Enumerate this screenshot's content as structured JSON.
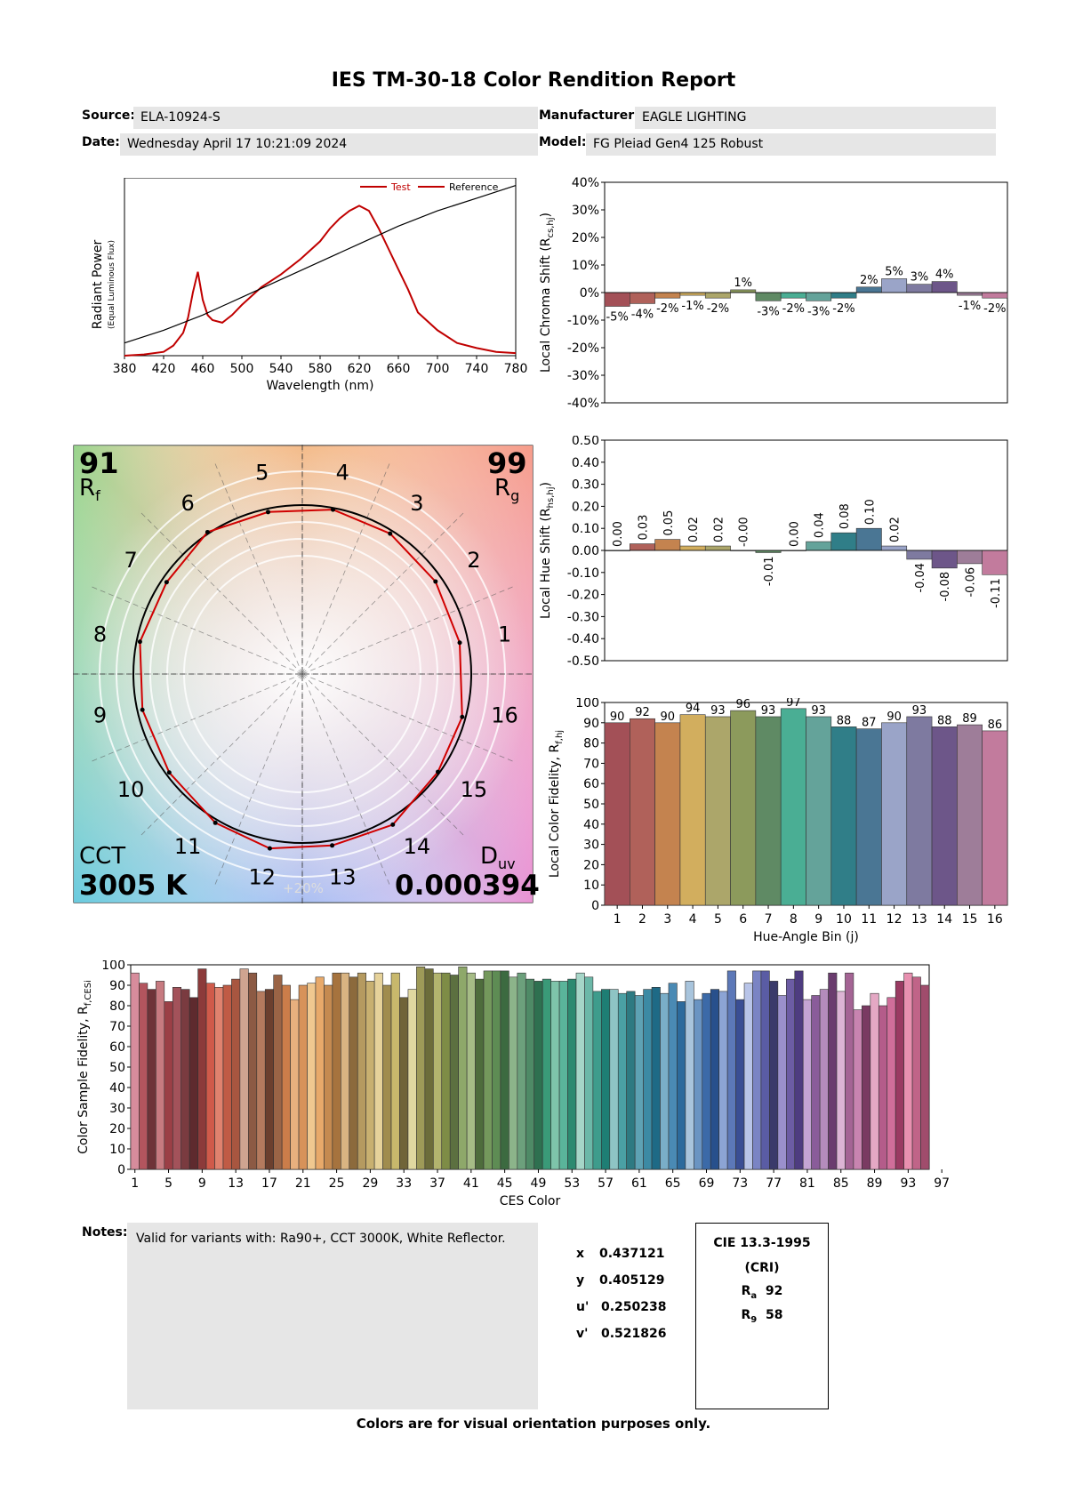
{
  "report": {
    "title": "IES TM-30-18 Color Rendition Report",
    "source_label": "Source:",
    "source": "ELA-10924-S",
    "manufacturer_label": "Manufacturer:",
    "manufacturer": "EAGLE LIGHTING",
    "date_label": "Date:",
    "date": "Wednesday April 17 10:21:09 2024",
    "model_label": "Model:",
    "model": "FG Pleiad Gen4 125 Robust",
    "notes_label": "Notes:",
    "notes": "Valid for variants with: Ra90+, CCT 3000K, White Reflector.",
    "footer": "Colors are for visual orientation purposes only."
  },
  "coordinates": {
    "x_label": "x",
    "x": "0.437121",
    "y_label": "y",
    "y": "0.405129",
    "u_label": "u'",
    "u": "0.250238",
    "v_label": "v'",
    "v": "0.521826"
  },
  "cri": {
    "title": "CIE 13.3-1995",
    "subtitle": "(CRI)",
    "ra_label": "R",
    "ra_sub": "a",
    "ra": "92",
    "r9_label": "R",
    "r9_sub": "9",
    "r9": "58"
  },
  "vector_graphic": {
    "rf": "91",
    "rf_label": "R",
    "rf_sub": "f",
    "rg": "99",
    "rg_label": "R",
    "rg_sub": "g",
    "cct_label": "CCT",
    "cct": "3005 K",
    "duv_label": "D",
    "duv_sub": "uv",
    "duv": "0.000394",
    "ring_label": "+20%",
    "bin_labels": [
      "1",
      "2",
      "3",
      "4",
      "5",
      "6",
      "7",
      "8",
      "9",
      "10",
      "11",
      "12",
      "13",
      "14",
      "15",
      "16"
    ]
  },
  "bin_colors": [
    "#a35057",
    "#b0615a",
    "#c4834f",
    "#d2ae5e",
    "#aca66a",
    "#8c9a5c",
    "#5f8a64",
    "#4aae94",
    "#64a39a",
    "#307e88",
    "#4a7694",
    "#9aa4c8",
    "#7e7aa0",
    "#6d5689",
    "#9e7d99",
    "#c27b9d"
  ],
  "chart_data": [
    {
      "type": "line",
      "name": "spd",
      "xlabel": "Wavelength (nm)",
      "ylabel": "Radiant Power",
      "ylabel_sub": "(Equal Luminous Flux)",
      "xlim": [
        380,
        780
      ],
      "xticks": [
        380,
        420,
        460,
        500,
        540,
        580,
        620,
        660,
        700,
        740,
        780
      ],
      "legend": [
        "Test",
        "Reference"
      ],
      "legend_position": "top-right",
      "series": [
        {
          "name": "Test",
          "color": "#c00000",
          "x": [
            380,
            400,
            420,
            430,
            440,
            445,
            450,
            455,
            460,
            465,
            470,
            480,
            490,
            500,
            520,
            540,
            560,
            580,
            590,
            600,
            610,
            620,
            630,
            640,
            650,
            660,
            670,
            680,
            700,
            720,
            740,
            760,
            780
          ],
          "y": [
            0,
            0.005,
            0.015,
            0.04,
            0.09,
            0.15,
            0.25,
            0.33,
            0.22,
            0.16,
            0.14,
            0.13,
            0.16,
            0.2,
            0.27,
            0.32,
            0.38,
            0.45,
            0.5,
            0.54,
            0.57,
            0.59,
            0.57,
            0.5,
            0.42,
            0.34,
            0.26,
            0.17,
            0.1,
            0.05,
            0.03,
            0.015,
            0.01
          ]
        },
        {
          "name": "Reference",
          "color": "#000000",
          "x": [
            380,
            420,
            460,
            500,
            540,
            580,
            620,
            660,
            700,
            740,
            780
          ],
          "y": [
            0.05,
            0.1,
            0.16,
            0.23,
            0.3,
            0.37,
            0.44,
            0.51,
            0.57,
            0.62,
            0.67
          ]
        }
      ]
    },
    {
      "type": "bar",
      "name": "local_chroma_shift",
      "ylabel": "Local Chroma Shift (R",
      "ylabel_sub": "cs,hj",
      "ylabel_close": ")",
      "ylim": [
        -40,
        40
      ],
      "yticks": [
        "40%",
        "30%",
        "20%",
        "10%",
        "0%",
        "-10%",
        "-20%",
        "-30%",
        "-40%"
      ],
      "categories": [
        "1",
        "2",
        "3",
        "4",
        "5",
        "6",
        "7",
        "8",
        "9",
        "10",
        "11",
        "12",
        "13",
        "14",
        "15",
        "16"
      ],
      "values": [
        -5,
        -4,
        -2,
        -1,
        -2,
        1,
        -3,
        -2,
        -3,
        -2,
        2,
        5,
        3,
        4,
        -1,
        -2
      ],
      "labels": [
        "-5%",
        "-4%",
        "-2%",
        "-1%",
        "-2%",
        "1%",
        "-3%",
        "-2%",
        "-3%",
        "-2%",
        "2%",
        "5%",
        "3%",
        "4%",
        "-1%",
        "-2%"
      ]
    },
    {
      "type": "bar",
      "name": "local_hue_shift",
      "ylabel": "Local Hue Shift (R",
      "ylabel_sub": "hs,hj",
      "ylabel_close": ")",
      "ylim": [
        -0.5,
        0.5
      ],
      "yticks": [
        "0.50",
        "0.40",
        "0.30",
        "0.20",
        "0.10",
        "0.00",
        "-0.10",
        "-0.20",
        "-0.30",
        "-0.40",
        "-0.50"
      ],
      "categories": [
        "1",
        "2",
        "3",
        "4",
        "5",
        "6",
        "7",
        "8",
        "9",
        "10",
        "11",
        "12",
        "13",
        "14",
        "15",
        "16"
      ],
      "values": [
        0.0,
        0.03,
        0.05,
        0.02,
        0.02,
        0.0,
        -0.01,
        0.0,
        0.04,
        0.08,
        0.1,
        0.02,
        -0.04,
        -0.08,
        -0.06,
        -0.11
      ],
      "labels": [
        "0.00",
        "0.03",
        "0.05",
        "0.02",
        "0.02",
        "-0.00",
        "-0.01",
        "0.00",
        "0.04",
        "0.08",
        "0.10",
        "0.02",
        "-0.04",
        "-0.08",
        "-0.06",
        "-0.11"
      ]
    },
    {
      "type": "bar",
      "name": "local_color_fidelity",
      "xlabel": "Hue-Angle Bin (j)",
      "ylabel": "Local Color Fidelity, R",
      "ylabel_sub": "f,hj",
      "ylim": [
        0,
        100
      ],
      "yticks": [
        "100",
        "90",
        "80",
        "70",
        "60",
        "50",
        "40",
        "30",
        "20",
        "10",
        "0"
      ],
      "categories": [
        "1",
        "2",
        "3",
        "4",
        "5",
        "6",
        "7",
        "8",
        "9",
        "10",
        "11",
        "12",
        "13",
        "14",
        "15",
        "16"
      ],
      "values": [
        90,
        92,
        90,
        94,
        93,
        96,
        93,
        97,
        93,
        88,
        87,
        90,
        93,
        88,
        89,
        86
      ]
    },
    {
      "type": "bar",
      "name": "color_sample_fidelity",
      "xlabel": "CES Color",
      "ylabel": "Color Sample Fidelity, R",
      "ylabel_sub": "f,CESi",
      "ylim": [
        0,
        100
      ],
      "yticks": [
        "100",
        "90",
        "80",
        "70",
        "60",
        "50",
        "40",
        "30",
        "20",
        "10",
        "0"
      ],
      "xticks": [
        "1",
        "5",
        "9",
        "13",
        "17",
        "21",
        "25",
        "29",
        "33",
        "37",
        "41",
        "45",
        "49",
        "53",
        "57",
        "61",
        "65",
        "69",
        "73",
        "77",
        "81",
        "85",
        "89",
        "93",
        "97"
      ],
      "values": [
        96,
        91,
        88,
        92,
        82,
        89,
        88,
        84,
        98,
        91,
        89,
        90,
        93,
        98,
        96,
        87,
        88,
        95,
        90,
        83,
        90,
        91,
        94,
        90,
        96,
        96,
        94,
        96,
        92,
        96,
        90,
        96,
        84,
        88,
        99,
        98,
        96,
        96,
        95,
        99,
        96,
        93,
        97,
        97,
        97,
        94,
        96,
        93,
        92,
        93,
        92,
        92,
        93,
        96,
        94,
        87,
        88,
        88,
        86,
        87,
        85,
        88,
        89,
        86,
        91,
        82,
        92,
        83,
        86,
        88,
        87,
        97,
        83,
        91,
        97,
        97,
        92,
        85,
        93,
        97,
        83,
        85,
        88,
        96,
        87,
        96,
        78,
        80,
        86,
        80,
        84,
        92,
        96,
        94,
        90
      ],
      "colors": [
        "#d78c9c",
        "#b3555e",
        "#6e3338",
        "#c77a80",
        "#9b3f46",
        "#a3525a",
        "#7a3b40",
        "#5e2a2e",
        "#8c3a3a",
        "#d05a4a",
        "#e0826e",
        "#c05b45",
        "#a85640",
        "#cfa490",
        "#8c5a44",
        "#b47a5e",
        "#6b3f2e",
        "#9a6446",
        "#cb7d4a",
        "#e8b07e",
        "#d7925a",
        "#f0c890",
        "#e8a96a",
        "#c58a50",
        "#a6733e",
        "#d9b482",
        "#8c6a3c",
        "#b59a60",
        "#c8b070",
        "#e6d29a",
        "#a08c4e",
        "#c8b86c",
        "#706438",
        "#e0d8a0",
        "#9e9a58",
        "#6c6c3a",
        "#b2b46e",
        "#7e8c46",
        "#5c7040",
        "#8ea86a",
        "#a6bc86",
        "#4e6c3c",
        "#74985c",
        "#5e8c54",
        "#3c6a40",
        "#8cb48a",
        "#6ca07c",
        "#4e8a66",
        "#2e7050",
        "#3a9a78",
        "#7ec4aa",
        "#5ab49a",
        "#2c8a70",
        "#a6d6c8",
        "#6cb8a8",
        "#3e9c8c",
        "#1e7e74",
        "#8ec4c4",
        "#4aa0a4",
        "#2e7a82",
        "#5ea2b4",
        "#3c8aa4",
        "#1e6a86",
        "#7aaec8",
        "#4a8ab4",
        "#2c6a9c",
        "#a8c4dc",
        "#6a94c2",
        "#3c6aa8",
        "#28508c",
        "#8ca4d4",
        "#5c78b8",
        "#3a4e94",
        "#b8c4e8",
        "#7a84c4",
        "#5a5ca4",
        "#3a3a6a",
        "#9a90cc",
        "#6c5ca4",
        "#4e3c80",
        "#c4a4d4",
        "#8a5c9a",
        "#b48cbc",
        "#6a3c6e",
        "#dcb4d4",
        "#a46494",
        "#c884b0",
        "#7a3a62",
        "#e4a8c4",
        "#b45c8a",
        "#d06e9a",
        "#9a3a62",
        "#e890b0",
        "#c06488",
        "#a04c6c"
      ]
    }
  ]
}
